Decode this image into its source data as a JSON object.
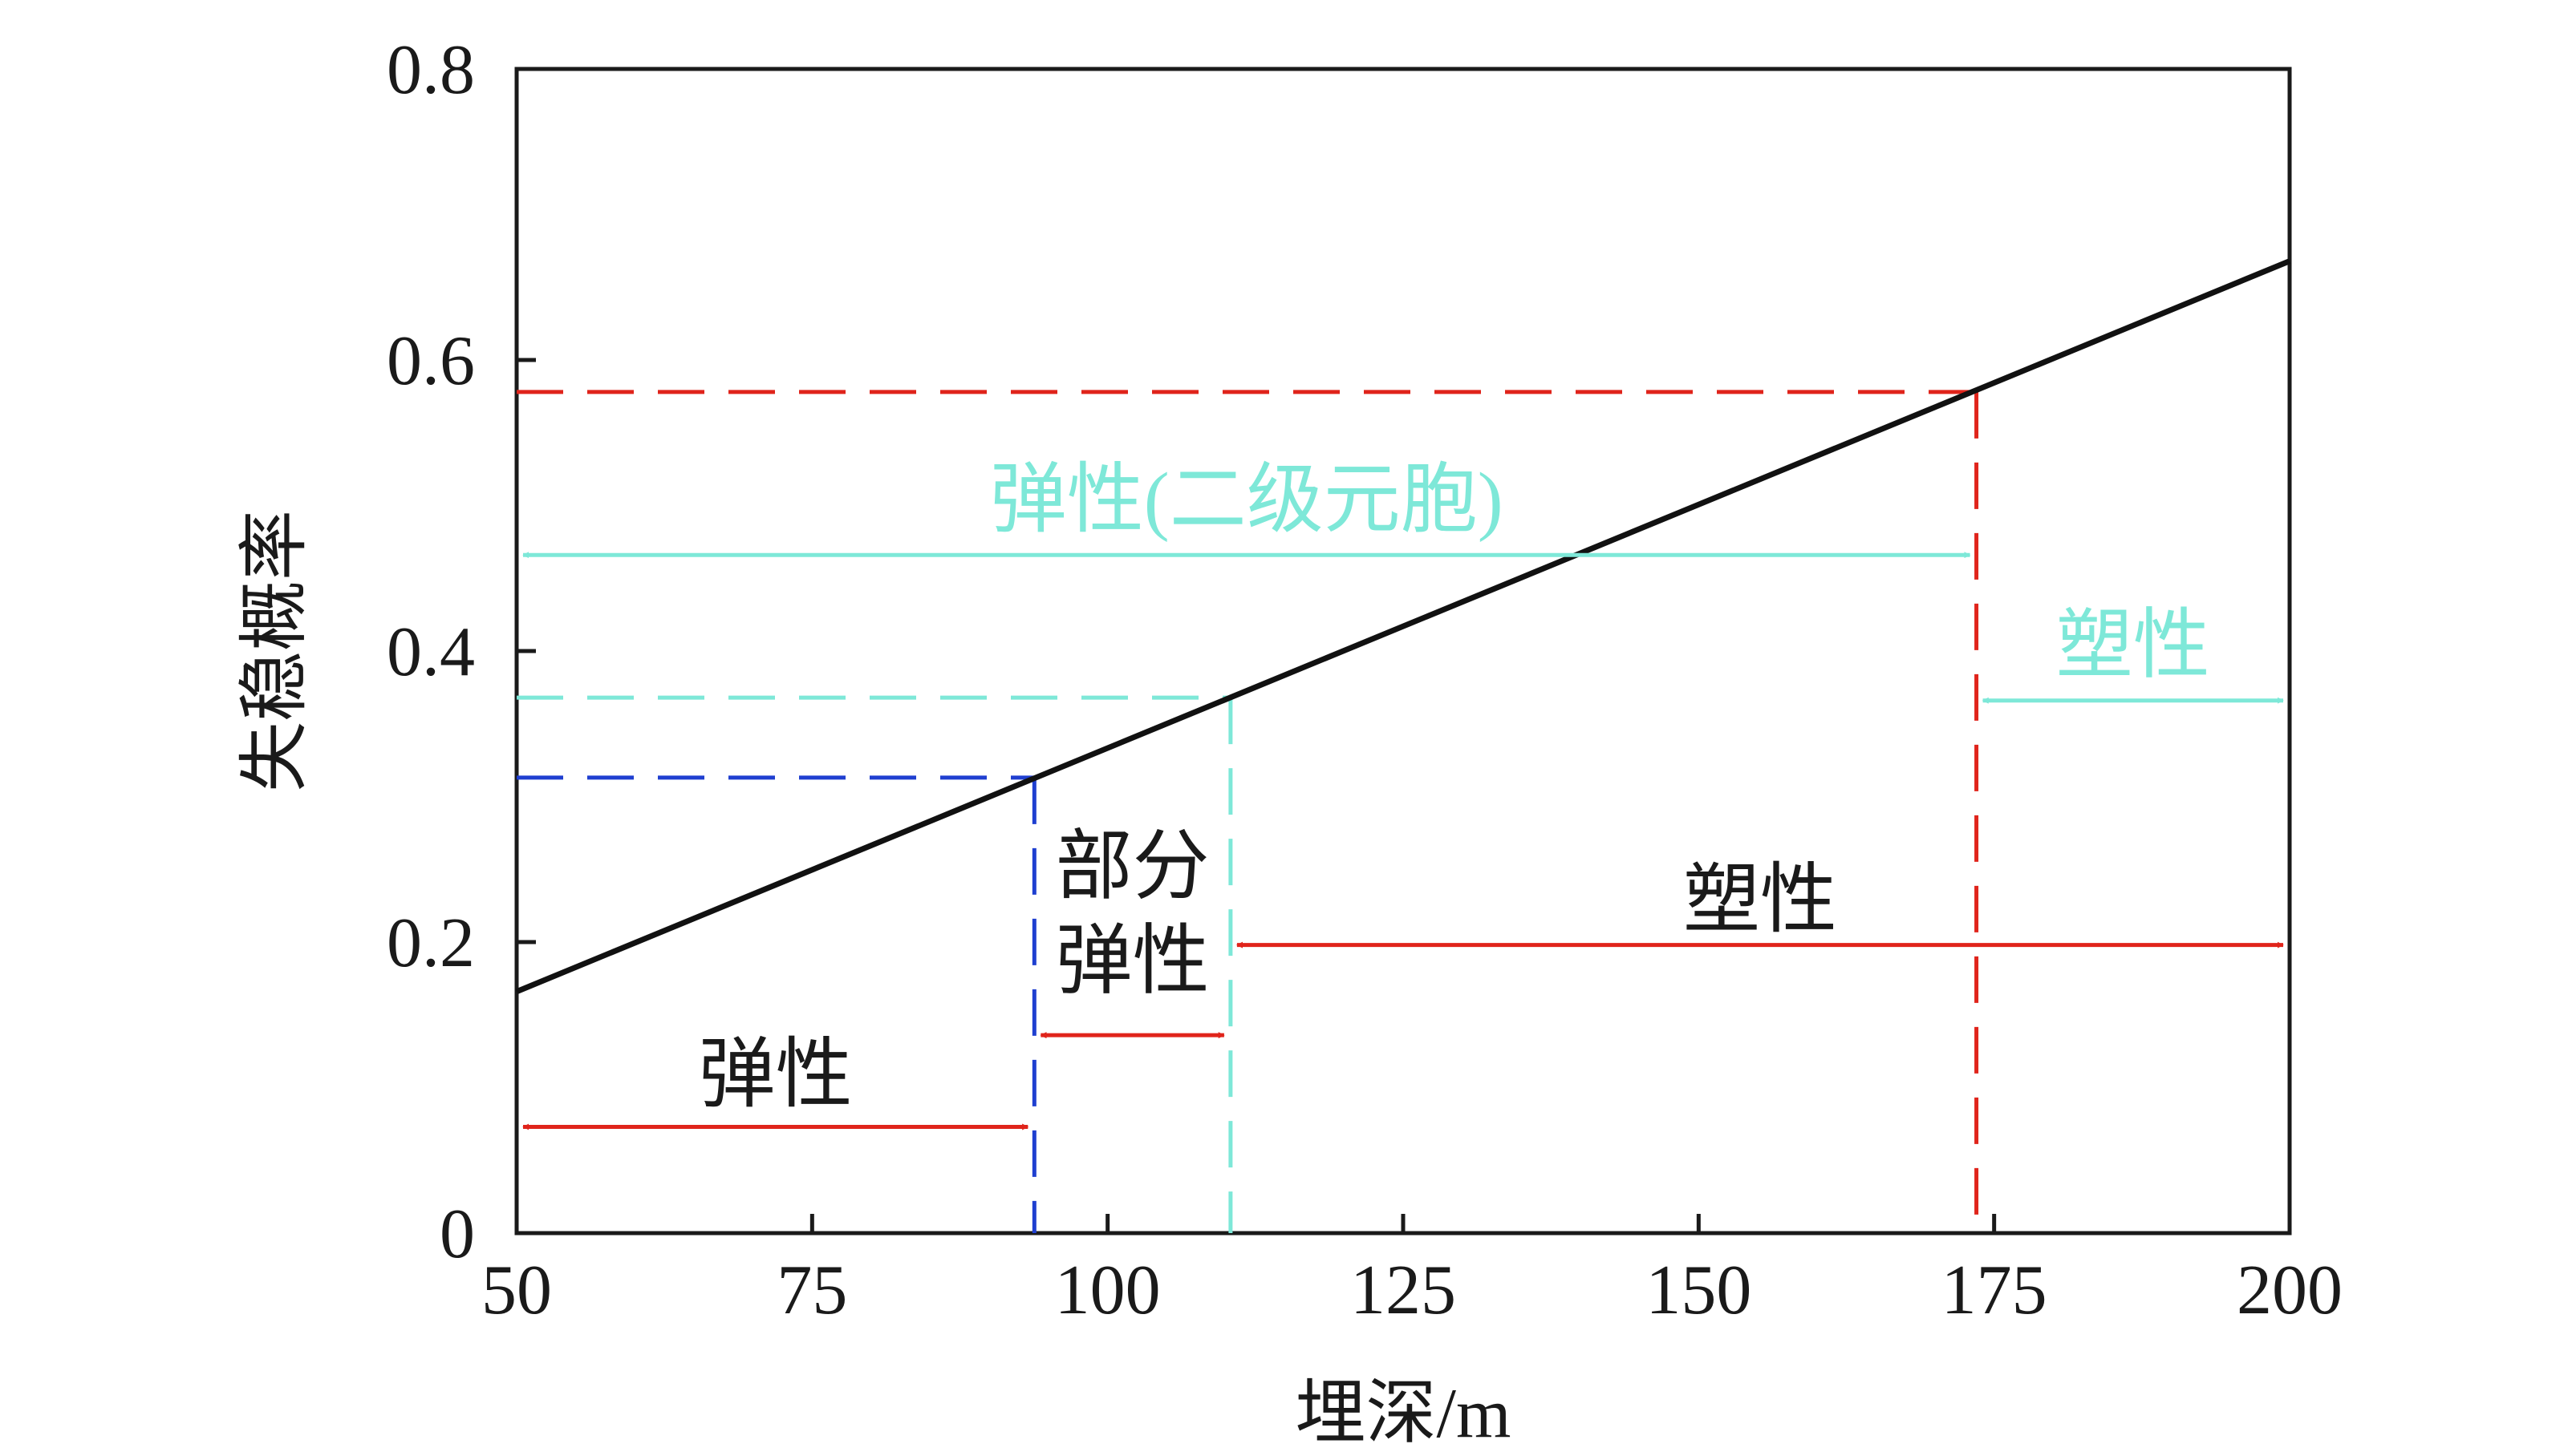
{
  "chart_data": {
    "type": "line",
    "title": "",
    "xlabel": "埋深/m",
    "ylabel": "失稳概率",
    "xlim": [
      50,
      200
    ],
    "ylim": [
      0,
      0.8
    ],
    "grid": false,
    "x_ticks": [
      "50",
      "75",
      "100",
      "125",
      "150",
      "175",
      "200"
    ],
    "y_ticks": [
      "0",
      "0.2",
      "0.4",
      "0.6",
      "0.8"
    ],
    "series": [
      {
        "x": [
          50,
          200
        ],
        "y": [
          0.166,
          0.668
        ],
        "color": "#111111"
      }
    ],
    "thresholds": [
      {
        "x": 93.8,
        "y": 0.313,
        "color": "#1f3fd0"
      },
      {
        "x": 110.4,
        "y": 0.368,
        "color": "#7ee8d8"
      },
      {
        "x": 173.5,
        "y": 0.578,
        "color": "#e0241b"
      }
    ],
    "regions": [
      {
        "label": "弹性",
        "x_start": 50,
        "x_end": 93.8,
        "y": 0.073,
        "label_y": 0.11,
        "color": "#e0241b"
      },
      {
        "label_line1": "部分",
        "label_line2": "弹性",
        "x_start": 93.8,
        "x_end": 110.4,
        "y": 0.136,
        "color": "#e0241b"
      },
      {
        "label": "塑性",
        "x_start": 110.4,
        "x_end": 200,
        "y": 0.198,
        "label_y": 0.23,
        "color": "#e0241b"
      },
      {
        "label": "弹性(二级元胞)",
        "x_start": 50,
        "x_end": 173.5,
        "y": 0.466,
        "label_y": 0.505,
        "color": "#7ee8d8"
      },
      {
        "label": "塑性",
        "x_start": 173.5,
        "x_end": 200,
        "y": 0.366,
        "label_y": 0.405,
        "color": "#7ee8d8"
      }
    ]
  }
}
